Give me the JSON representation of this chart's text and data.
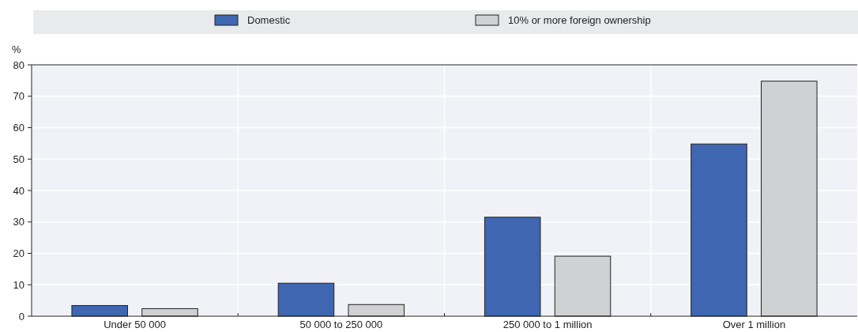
{
  "chart_data": {
    "type": "bar",
    "ylabel": "%",
    "categories": [
      "Under 50 000",
      "50 000 to 250 000",
      "250 000 to 1 million",
      "Over 1 million"
    ],
    "series": [
      {
        "name": "Domestic",
        "color": "#3f67b1",
        "values": [
          3.4,
          10.5,
          31.5,
          54.8
        ]
      },
      {
        "name": "10% or more foreign ownership",
        "color": "#d0d1d3",
        "values": [
          2.4,
          3.7,
          19.1,
          74.8
        ]
      }
    ],
    "ylim": [
      0,
      80
    ],
    "yticks": [
      0,
      10,
      20,
      30,
      40,
      50,
      60,
      70,
      80
    ],
    "grid": true,
    "legend": "top"
  }
}
